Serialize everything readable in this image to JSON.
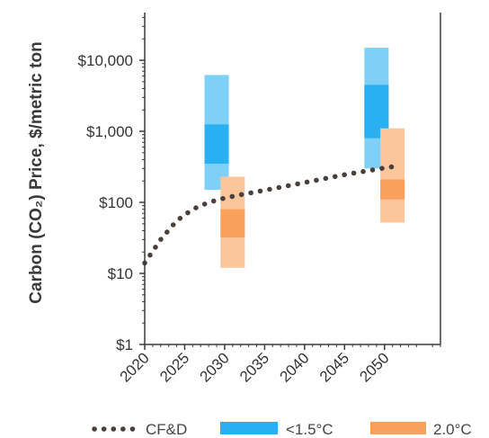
{
  "chart_data": {
    "type": "range-bar",
    "ylabel": "Carbon (CO₂) Price, $/metric ton",
    "yscale": "log",
    "ylim": [
      1,
      50000
    ],
    "yticks": [
      {
        "value": 1,
        "label": "$1"
      },
      {
        "value": 10,
        "label": "$10"
      },
      {
        "value": 100,
        "label": "$100"
      },
      {
        "value": 1000,
        "label": "$1,000"
      },
      {
        "value": 10000,
        "label": "$10,000"
      }
    ],
    "xlim": [
      2020,
      2057
    ],
    "xticks": [
      {
        "value": 2020,
        "label": "2020"
      },
      {
        "value": 2025,
        "label": "2025"
      },
      {
        "value": 2030,
        "label": "2030"
      },
      {
        "value": 2035,
        "label": "2035"
      },
      {
        "value": 2040,
        "label": "2040"
      },
      {
        "value": 2045,
        "label": "2045"
      },
      {
        "value": 2050,
        "label": "2050"
      }
    ],
    "grid": false,
    "legend_position": "bottom",
    "series": [
      {
        "name": "CF&D",
        "kind": "dotted-line",
        "color": "#4a3f3a",
        "points": [
          [
            2020,
            14
          ],
          [
            2022,
            30
          ],
          [
            2024,
            55
          ],
          [
            2026,
            80
          ],
          [
            2028,
            100
          ],
          [
            2030,
            115
          ],
          [
            2032,
            128
          ],
          [
            2035,
            148
          ],
          [
            2040,
            190
          ],
          [
            2045,
            245
          ],
          [
            2050,
            305
          ],
          [
            2052,
            330
          ]
        ]
      },
      {
        "name": "<1.5°C",
        "kind": "range",
        "color": "#29b0f0",
        "bars": [
          {
            "x": 2029,
            "min": 150,
            "max": 6200,
            "p25": 350,
            "p75": 1250
          },
          {
            "x": 2049,
            "min": 300,
            "max": 15000,
            "p25": 800,
            "p75": 4500
          }
        ]
      },
      {
        "name": "2.0°C",
        "kind": "range",
        "color": "#f9a05a",
        "bars": [
          {
            "x": 2031,
            "min": 12,
            "max": 230,
            "p25": 32,
            "p75": 80
          },
          {
            "x": 2051,
            "min": 52,
            "max": 1100,
            "p25": 110,
            "p75": 210
          }
        ]
      }
    ]
  }
}
